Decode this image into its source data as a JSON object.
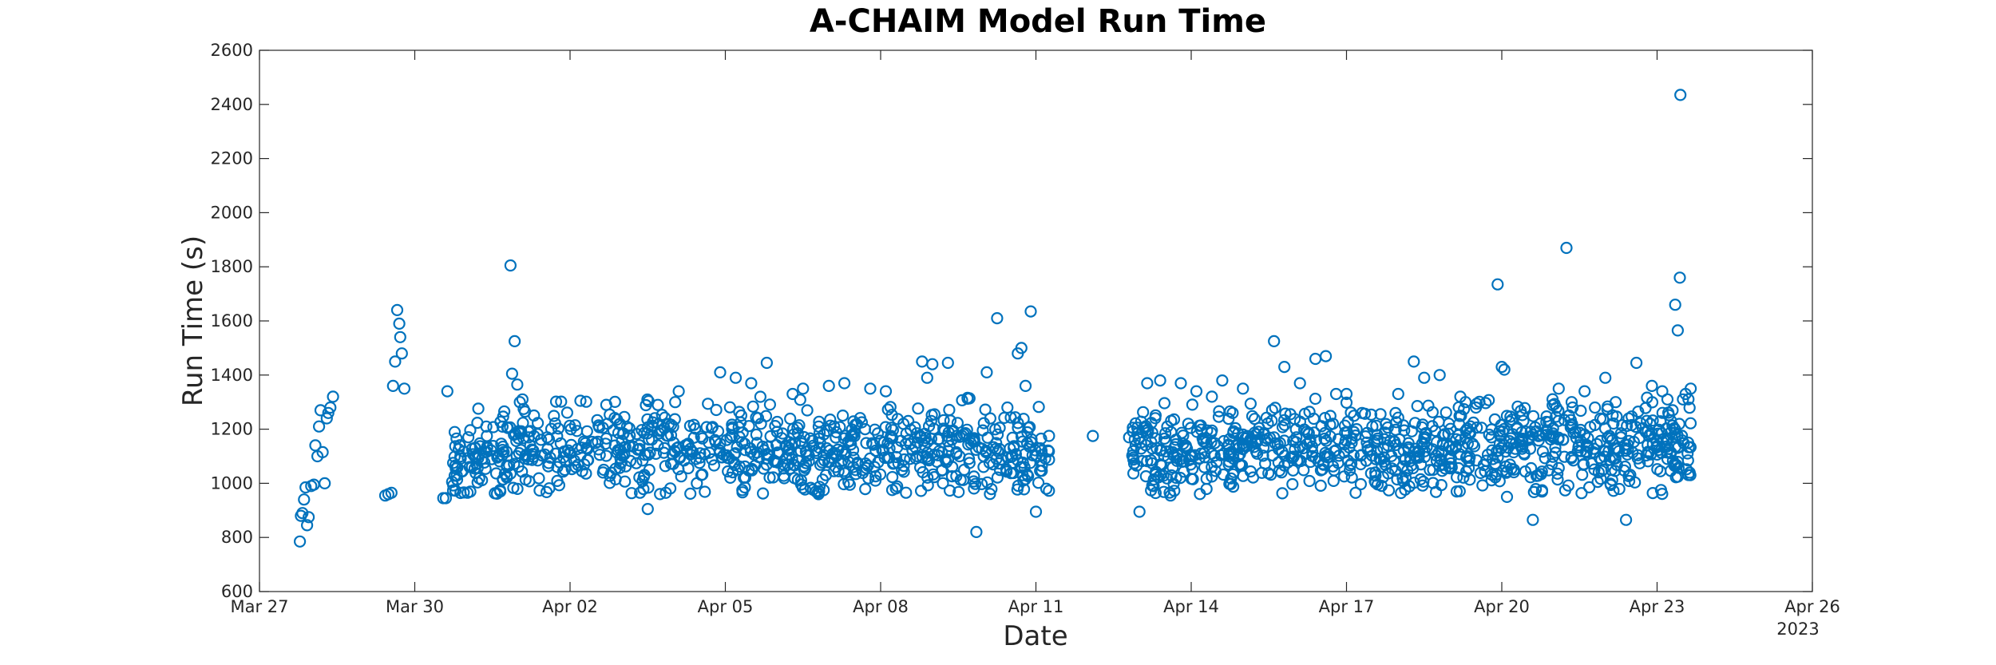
{
  "chart_data": {
    "type": "scatter",
    "title": "A-CHAIM Model Run Time",
    "xlabel": "Date",
    "ylabel": "Run Time (s)",
    "year_label": "2023",
    "xlim_days": [
      0,
      29
    ],
    "ylim": [
      600,
      2600
    ],
    "x_ticks": [
      {
        "day": 0,
        "label": "Mar 27"
      },
      {
        "day": 3,
        "label": "Mar 30"
      },
      {
        "day": 6,
        "label": "Apr 02"
      },
      {
        "day": 9,
        "label": "Apr 05"
      },
      {
        "day": 12,
        "label": "Apr 08"
      },
      {
        "day": 15,
        "label": "Apr 11"
      },
      {
        "day": 18,
        "label": "Apr 14"
      },
      {
        "day": 21,
        "label": "Apr 17"
      },
      {
        "day": 24,
        "label": "Apr 20"
      },
      {
        "day": 27,
        "label": "Apr 23"
      },
      {
        "day": 30,
        "label": "Apr 26"
      }
    ],
    "y_ticks": [
      600,
      800,
      1000,
      1200,
      1400,
      1600,
      1800,
      2000,
      2200,
      2400,
      2600
    ],
    "series": [
      {
        "name": "Run Time",
        "color": "#0072BD",
        "marker": "circle-open",
        "points": [
          [
            0.78,
            785
          ],
          [
            0.8,
            880
          ],
          [
            0.83,
            890
          ],
          [
            0.86,
            940
          ],
          [
            0.89,
            985
          ],
          [
            0.92,
            845
          ],
          [
            0.95,
            875
          ],
          [
            1.0,
            990
          ],
          [
            1.05,
            995
          ],
          [
            1.08,
            1140
          ],
          [
            1.12,
            1100
          ],
          [
            1.15,
            1210
          ],
          [
            1.18,
            1270
          ],
          [
            1.22,
            1115
          ],
          [
            1.26,
            1000
          ],
          [
            1.3,
            1240
          ],
          [
            1.33,
            1260
          ],
          [
            1.37,
            1280
          ],
          [
            1.42,
            1320
          ],
          [
            2.43,
            955
          ],
          [
            2.49,
            960
          ],
          [
            2.55,
            965
          ],
          [
            2.58,
            1360
          ],
          [
            2.62,
            1450
          ],
          [
            2.66,
            1640
          ],
          [
            2.7,
            1590
          ],
          [
            2.72,
            1540
          ],
          [
            2.75,
            1480
          ],
          [
            2.8,
            1350
          ],
          [
            3.55,
            945
          ],
          [
            3.6,
            945
          ],
          [
            3.63,
            1340
          ],
          [
            8.0,
            1150
          ],
          [
            8.8,
            1160
          ],
          [
            9.6,
            1180
          ],
          [
            10.0,
            1190
          ],
          [
            11.1,
            1210
          ],
          [
            11.7,
            1200
          ],
          [
            12.2,
            1175
          ],
          [
            12.7,
            1185
          ],
          [
            13.4,
            1195
          ],
          [
            14.3,
            1205
          ],
          [
            15.1,
            1165
          ],
          [
            16.1,
            1175
          ],
          [
            16.8,
            1170
          ],
          [
            17.5,
            1185
          ],
          [
            18.4,
            1195
          ],
          [
            19.0,
            1180
          ],
          [
            19.6,
            1170
          ],
          [
            20.3,
            1160
          ],
          [
            21.1,
            1150
          ],
          [
            21.8,
            1140
          ],
          [
            22.5,
            1145
          ],
          [
            23.2,
            1160
          ],
          [
            23.8,
            1170
          ],
          [
            24.4,
            1165
          ],
          [
            25.0,
            1175
          ],
          [
            25.6,
            1180
          ],
          [
            26.3,
            1170
          ],
          [
            26.9,
            1185
          ],
          [
            4.85,
            1805
          ],
          [
            4.93,
            1525
          ],
          [
            4.88,
            1405
          ],
          [
            4.98,
            1365
          ],
          [
            5.03,
            1300
          ],
          [
            5.08,
            1310
          ],
          [
            5.13,
            1265
          ],
          [
            6.2,
            1305
          ],
          [
            6.7,
            1290
          ],
          [
            7.6,
            1225
          ],
          [
            8.1,
            1340
          ],
          [
            8.9,
            1410
          ],
          [
            9.2,
            1390
          ],
          [
            9.5,
            1370
          ],
          [
            9.8,
            1445
          ],
          [
            10.3,
            1330
          ],
          [
            10.5,
            1350
          ],
          [
            11.0,
            1360
          ],
          [
            11.3,
            1370
          ],
          [
            11.8,
            1350
          ],
          [
            12.1,
            1340
          ],
          [
            12.8,
            1450
          ],
          [
            13.0,
            1440
          ],
          [
            13.3,
            1445
          ],
          [
            12.9,
            1390
          ],
          [
            13.85,
            820
          ],
          [
            14.05,
            1410
          ],
          [
            14.25,
            1610
          ],
          [
            14.45,
            1280
          ],
          [
            14.65,
            1480
          ],
          [
            14.72,
            1500
          ],
          [
            14.8,
            1360
          ],
          [
            14.9,
            1635
          ],
          [
            15.0,
            895
          ],
          [
            15.2,
            980
          ],
          [
            7.5,
            905
          ],
          [
            7.85,
            965
          ],
          [
            8.45,
            1000
          ],
          [
            10.75,
            970
          ],
          [
            10.8,
            960
          ],
          [
            10.9,
            975
          ],
          [
            11.9,
            1010
          ],
          [
            17.0,
            895
          ],
          [
            17.15,
            1370
          ],
          [
            17.4,
            1380
          ],
          [
            17.6,
            955
          ],
          [
            17.8,
            1370
          ],
          [
            18.1,
            1340
          ],
          [
            18.4,
            1320
          ],
          [
            18.6,
            1380
          ],
          [
            18.8,
            1260
          ],
          [
            19.0,
            1350
          ],
          [
            19.6,
            1525
          ],
          [
            19.8,
            1430
          ],
          [
            20.1,
            1370
          ],
          [
            20.4,
            1460
          ],
          [
            20.6,
            1470
          ],
          [
            20.8,
            1330
          ],
          [
            21.0,
            1330
          ],
          [
            21.3,
            1260
          ],
          [
            21.5,
            1210
          ],
          [
            22.0,
            1330
          ],
          [
            22.3,
            1450
          ],
          [
            22.5,
            1390
          ],
          [
            22.8,
            1400
          ],
          [
            23.2,
            1320
          ],
          [
            23.3,
            1300
          ],
          [
            23.5,
            1280
          ],
          [
            23.92,
            1735
          ],
          [
            24.0,
            1430
          ],
          [
            24.05,
            1420
          ],
          [
            24.1,
            950
          ],
          [
            24.4,
            1160
          ],
          [
            24.6,
            865
          ],
          [
            25.1,
            1350
          ],
          [
            25.25,
            1870
          ],
          [
            25.35,
            1300
          ],
          [
            25.6,
            1340
          ],
          [
            25.8,
            1280
          ],
          [
            26.0,
            1390
          ],
          [
            26.2,
            1300
          ],
          [
            26.4,
            865
          ],
          [
            26.6,
            1445
          ],
          [
            26.9,
            1360
          ],
          [
            27.1,
            1340
          ],
          [
            27.2,
            1310
          ],
          [
            27.3,
            1270
          ],
          [
            27.35,
            1660
          ],
          [
            27.4,
            1565
          ],
          [
            27.44,
            1760
          ],
          [
            27.45,
            2435
          ],
          [
            27.5,
            1310
          ],
          [
            27.55,
            1330
          ],
          [
            27.6,
            1150
          ],
          [
            27.65,
            1350
          ],
          [
            27.2,
            1090
          ]
        ]
      }
    ]
  }
}
